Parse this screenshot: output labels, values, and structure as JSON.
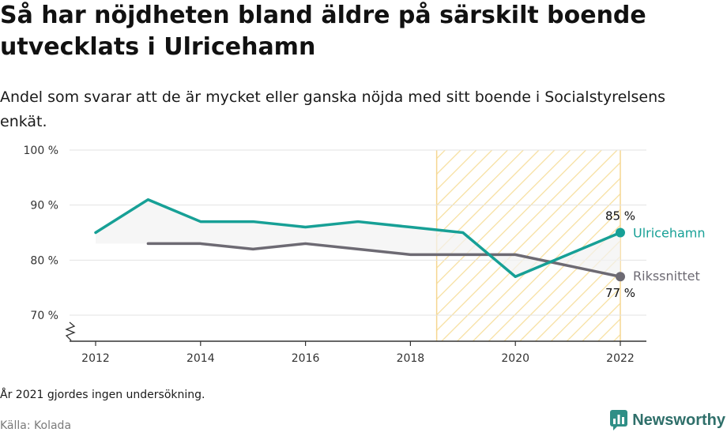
{
  "title": "Så har nöjdheten bland äldre på särskilt boende utvecklats i Ulricehamn",
  "subtitle": "Andel som svarar att de är mycket eller ganska nöjda med sitt boende i Socialstyrelsens enkät.",
  "note": "År 2021 gjordes ingen undersökning.",
  "source": "Källa: Kolada",
  "brand": "Newsworthy",
  "colors": {
    "ulricehamn": "#17a096",
    "riks": "#6d6a73",
    "highlight_stroke": "#f5d690",
    "highlight_hatch": "#f7df9e",
    "grid": "#e3e3e3",
    "axis": "#333333"
  },
  "chart_data": {
    "type": "line",
    "xlim": [
      2011.5,
      2022.5
    ],
    "ylim": [
      65,
      100
    ],
    "y_ticks": [
      {
        "value": 70,
        "label": "70 %"
      },
      {
        "value": 80,
        "label": "80 %"
      },
      {
        "value": 90,
        "label": "90 %"
      },
      {
        "value": 100,
        "label": "100 %"
      }
    ],
    "x_ticks": [
      {
        "value": 2012,
        "label": "2012"
      },
      {
        "value": 2014,
        "label": "2014"
      },
      {
        "value": 2016,
        "label": "2016"
      },
      {
        "value": 2018,
        "label": "2018"
      },
      {
        "value": 2020,
        "label": "2020"
      },
      {
        "value": 2022,
        "label": "2022"
      }
    ],
    "highlight_range": [
      2018.5,
      2022
    ],
    "series": [
      {
        "name": "Ulricehamn",
        "color_key": "ulricehamn",
        "x": [
          2012,
          2013,
          2014,
          2015,
          2016,
          2017,
          2018,
          2019,
          2020,
          2022
        ],
        "y": [
          85,
          91,
          87,
          87,
          86,
          87,
          86,
          85,
          77,
          85
        ],
        "end_value_label": "85 %"
      },
      {
        "name": "Rikssnittet",
        "color_key": "riks",
        "x": [
          2013,
          2014,
          2015,
          2016,
          2017,
          2018,
          2019,
          2020,
          2022
        ],
        "y": [
          83,
          83,
          82,
          83,
          82,
          81,
          81,
          81,
          77
        ],
        "end_value_label": "77 %"
      }
    ]
  }
}
